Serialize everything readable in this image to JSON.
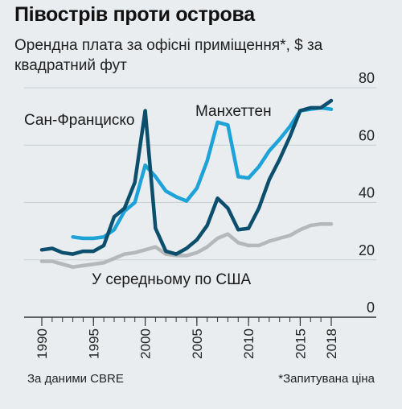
{
  "title": "Півострів проти острова",
  "subtitle": "Орендна плата за офісні приміщення*, $ за квадратний фут",
  "source": "За даними CBRE",
  "footnote": "*Запитувана ціна",
  "colors": {
    "san_francisco": "#0b4f6c",
    "manhattan": "#1ea3d9",
    "us_average": "#b5b7b8",
    "background": "#e9edf0",
    "gridline": "#c9cfd3"
  },
  "chart_data": {
    "type": "line",
    "title": "Півострів проти острова",
    "subtitle": "Орендна плата за офісні приміщення*, $ за квадратний фут",
    "xlabel": "",
    "ylabel": "",
    "xlim": [
      1990,
      2018
    ],
    "ylim": [
      0,
      80
    ],
    "x_ticks": [
      1990,
      1995,
      2000,
      2005,
      2010,
      2015,
      2018
    ],
    "y_ticks": [
      0,
      20,
      40,
      60,
      80
    ],
    "y_axis_position": "right",
    "grid": true,
    "series": [
      {
        "name": "Сан-Франциско",
        "color": "#0b4f6c",
        "x": [
          1990,
          1991,
          1992,
          1993,
          1994,
          1995,
          1996,
          1997,
          1998,
          1999,
          2000,
          2001,
          2002,
          2003,
          2004,
          2005,
          2006,
          2007,
          2008,
          2009,
          2010,
          2011,
          2012,
          2013,
          2014,
          2015,
          2016,
          2017,
          2018
        ],
        "values": [
          23.5,
          24,
          22.5,
          22,
          23,
          23,
          25,
          35,
          38,
          47,
          72,
          31,
          23,
          22,
          24,
          27,
          32,
          41.5,
          38,
          30.5,
          31,
          38,
          48,
          55,
          63,
          72,
          73,
          73,
          75.5
        ]
      },
      {
        "name": "Манхеттен",
        "color": "#1ea3d9",
        "x": [
          1993,
          1994,
          1995,
          1996,
          1997,
          1998,
          1999,
          2000,
          2001,
          2002,
          2003,
          2004,
          2005,
          2006,
          2007,
          2008,
          2009,
          2010,
          2011,
          2012,
          2013,
          2014,
          2015,
          2016,
          2017,
          2018
        ],
        "values": [
          28,
          27.5,
          27.5,
          28,
          30.5,
          37,
          40,
          53,
          49,
          44,
          42,
          40.5,
          45,
          54.5,
          68,
          67,
          49,
          48.5,
          52.5,
          58,
          62,
          66.5,
          72,
          72.5,
          73,
          72.5
        ]
      },
      {
        "name": "У середньому по США",
        "color": "#b5b7b8",
        "x": [
          1990,
          1991,
          1992,
          1993,
          1994,
          1995,
          1996,
          1997,
          1998,
          1999,
          2000,
          2001,
          2002,
          2003,
          2004,
          2005,
          2006,
          2007,
          2008,
          2009,
          2010,
          2011,
          2012,
          2013,
          2014,
          2015,
          2016,
          2017,
          2018
        ],
        "values": [
          19.5,
          19.5,
          18.5,
          17.5,
          18,
          18.5,
          19,
          20.5,
          22,
          22.5,
          23.5,
          24.5,
          22,
          21.5,
          21.5,
          22.5,
          24.5,
          27.5,
          29,
          26,
          25,
          25,
          26.5,
          27.5,
          28.5,
          30.5,
          32,
          32.5,
          32.5
        ]
      }
    ],
    "annotations": [
      {
        "text": "Сан-Франциско",
        "series": "Сан-Франциско"
      },
      {
        "text": "Манхеттен",
        "series": "Манхеттен"
      },
      {
        "text": "У середньому по США",
        "series": "У середньому по США"
      }
    ]
  }
}
